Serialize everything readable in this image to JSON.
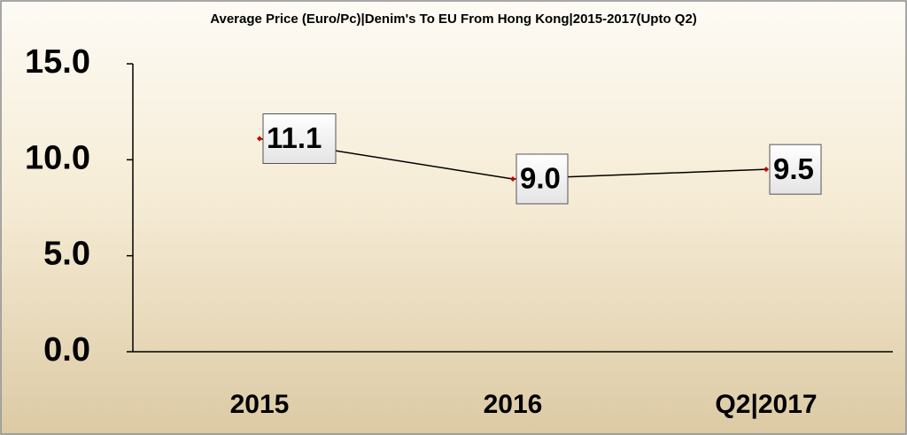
{
  "chart_data": {
    "type": "line",
    "title": "Average Price (Euro/Pc)|Denim's To EU From Hong Kong|2015-2017(Upto Q2)",
    "categories": [
      "2015",
      "2016",
      "Q2|2017"
    ],
    "values": [
      11.1,
      9.0,
      9.5
    ],
    "value_labels": [
      "11.1",
      "9.0",
      "9.5"
    ],
    "color": "#000000",
    "marker_color": "#c00000",
    "ylim": [
      0,
      15
    ],
    "yticks": [
      {
        "value": 0,
        "label": "0.0"
      },
      {
        "value": 5,
        "label": "5.0"
      },
      {
        "value": 10,
        "label": "10.0"
      },
      {
        "value": 15,
        "label": "15.0"
      }
    ],
    "grid": false
  }
}
